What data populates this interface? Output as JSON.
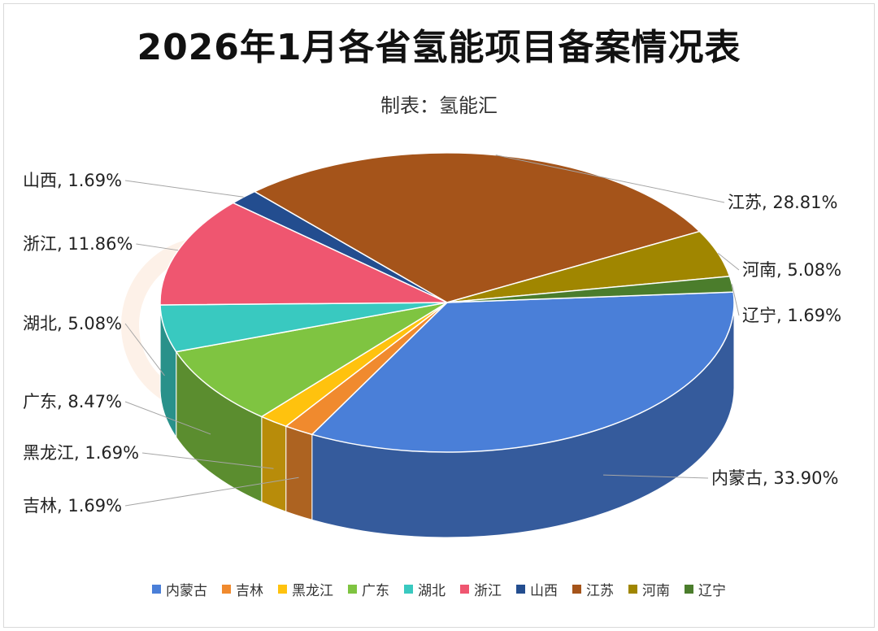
{
  "chart_data": {
    "type": "pie",
    "title": "2026年1月各省氢能项目备案情况表",
    "subtitle": "制表：氢能汇",
    "watermark": "氢能汇",
    "categories": [
      "内蒙古",
      "吉林",
      "黑龙江",
      "广东",
      "湖北",
      "浙江",
      "山西",
      "江苏",
      "河南",
      "辽宁"
    ],
    "values": [
      33.9,
      1.69,
      1.69,
      8.47,
      5.08,
      11.86,
      1.69,
      28.81,
      5.08,
      1.69
    ],
    "unit": "%",
    "data_labels": [
      "内蒙古, 33.90%",
      "吉林, 1.69%",
      "黑龙江, 1.69%",
      "广东, 8.47%",
      "湖北, 5.08%",
      "浙江, 11.86%",
      "山西, 1.69%",
      "江苏, 28.81%",
      "河南, 5.08%",
      "辽宁, 1.69%"
    ],
    "colors": [
      "#4a7fd8",
      "#f08a2e",
      "#ffc20e",
      "#7fc441",
      "#39c9c0",
      "#ef5670",
      "#234d8f",
      "#a5541a",
      "#a08600",
      "#4b7d2c"
    ],
    "legend_position": "bottom",
    "style": "3d"
  }
}
